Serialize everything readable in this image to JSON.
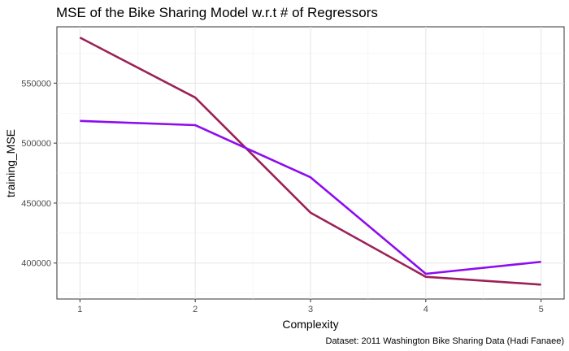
{
  "chart_data": {
    "type": "line",
    "title": "MSE of the Bike Sharing Model w.r.t # of Regressors",
    "xlabel": "Complexity",
    "ylabel": "training_MSE",
    "caption": "Dataset: 2011 Washington Bike Sharing Data (Hadi Fanaee)",
    "x": [
      1,
      2,
      3,
      4,
      5
    ],
    "xlim": [
      0.8,
      5.2
    ],
    "ylim": [
      370000,
      597000
    ],
    "x_ticks": [
      1,
      2,
      3,
      4,
      5
    ],
    "y_ticks": [
      400000,
      450000,
      500000,
      550000
    ],
    "y_tick_labels": [
      "400000",
      "450000",
      "500000",
      "550000"
    ],
    "grid": true,
    "legend": "none",
    "series": [
      {
        "values": [
          588000,
          538000,
          442000,
          388500,
          382000
        ],
        "color": "#9b2257"
      },
      {
        "values": [
          518500,
          515000,
          471500,
          391000,
          401000
        ],
        "color": "#8e0cf0"
      }
    ]
  }
}
